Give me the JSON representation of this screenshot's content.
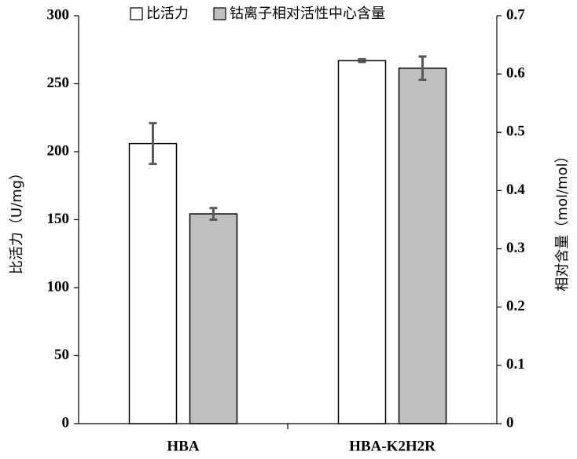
{
  "chart_data": {
    "type": "bar",
    "categories": [
      "HBA",
      "HBA-K2H2R"
    ],
    "series": [
      {
        "name": "比活力",
        "color": "#ffffff",
        "values": [
          206,
          267
        ],
        "errors": [
          15,
          1
        ]
      },
      {
        "name": "钴离子相对活性中心含量",
        "color": "#bfbfbf",
        "values": [
          0.36,
          0.61
        ],
        "errors": [
          0.01,
          0.02
        ],
        "axis": "y2"
      }
    ],
    "ylabel": "比活力（U/mg）",
    "y2label": "相对含量（mol/mol）",
    "ylim": [
      0,
      300
    ],
    "yticks": [
      0,
      50,
      100,
      150,
      200,
      250,
      300
    ],
    "y2lim": [
      0,
      0.7
    ],
    "y2ticks": [
      0,
      0.1,
      0.2,
      0.3,
      0.4,
      0.5,
      0.6,
      0.7
    ],
    "legend": "top"
  }
}
